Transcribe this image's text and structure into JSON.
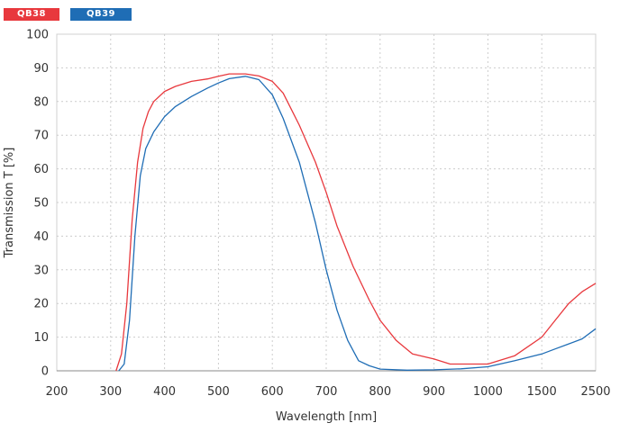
{
  "chart_data": {
    "type": "line",
    "title": "",
    "xlabel": "Wavelength [nm]",
    "ylabel": "Transmission T [%]",
    "ylim": [
      0,
      100
    ],
    "yticks": [
      "0",
      "10",
      "20",
      "30",
      "40",
      "50",
      "60",
      "70",
      "80",
      "90",
      "100"
    ],
    "xticks": [
      "200",
      "300",
      "400",
      "500",
      "600",
      "700",
      "800",
      "900",
      "1000",
      "1500",
      "2500"
    ],
    "x_scale_note": "piecewise axis: 200-1000 nm at 100 nm steps, then 1500 and 2500",
    "grid": true,
    "legend_position": "top-left",
    "series": [
      {
        "name": "QB38",
        "color": "#e8383d",
        "points": [
          [
            310,
            0
          ],
          [
            320,
            5
          ],
          [
            330,
            20
          ],
          [
            340,
            45
          ],
          [
            350,
            62
          ],
          [
            360,
            72
          ],
          [
            370,
            77
          ],
          [
            380,
            80
          ],
          [
            400,
            83
          ],
          [
            420,
            84.5
          ],
          [
            450,
            86
          ],
          [
            480,
            86.7
          ],
          [
            500,
            87.5
          ],
          [
            520,
            88.2
          ],
          [
            550,
            88.2
          ],
          [
            575,
            87.6
          ],
          [
            600,
            86
          ],
          [
            620,
            82.5
          ],
          [
            650,
            73
          ],
          [
            680,
            62
          ],
          [
            700,
            53
          ],
          [
            720,
            43
          ],
          [
            750,
            31
          ],
          [
            780,
            21
          ],
          [
            800,
            15
          ],
          [
            830,
            9
          ],
          [
            860,
            5
          ],
          [
            900,
            3.5
          ],
          [
            930,
            2
          ],
          [
            960,
            2
          ],
          [
            1000,
            2
          ],
          [
            1250,
            4.5
          ],
          [
            1500,
            10
          ],
          [
            1750,
            15
          ],
          [
            2000,
            20
          ],
          [
            2250,
            23.5
          ],
          [
            2500,
            26
          ]
        ]
      },
      {
        "name": "QB39",
        "color": "#1f6db5",
        "points": [
          [
            315,
            0
          ],
          [
            325,
            2
          ],
          [
            335,
            15
          ],
          [
            345,
            40
          ],
          [
            355,
            58
          ],
          [
            365,
            66
          ],
          [
            380,
            71
          ],
          [
            400,
            75.5
          ],
          [
            420,
            78.5
          ],
          [
            450,
            81.5
          ],
          [
            480,
            84
          ],
          [
            500,
            85.5
          ],
          [
            520,
            86.8
          ],
          [
            550,
            87.5
          ],
          [
            575,
            86.5
          ],
          [
            600,
            82
          ],
          [
            620,
            75
          ],
          [
            650,
            62
          ],
          [
            680,
            44
          ],
          [
            700,
            30
          ],
          [
            720,
            18
          ],
          [
            740,
            9
          ],
          [
            760,
            3
          ],
          [
            780,
            1.5
          ],
          [
            800,
            0.5
          ],
          [
            850,
            0.2
          ],
          [
            900,
            0.3
          ],
          [
            950,
            0.6
          ],
          [
            1000,
            1.2
          ],
          [
            1250,
            3
          ],
          [
            1500,
            5
          ],
          [
            1750,
            6.5
          ],
          [
            2000,
            8
          ],
          [
            2250,
            9.5
          ],
          [
            2500,
            12.5
          ]
        ]
      }
    ]
  }
}
